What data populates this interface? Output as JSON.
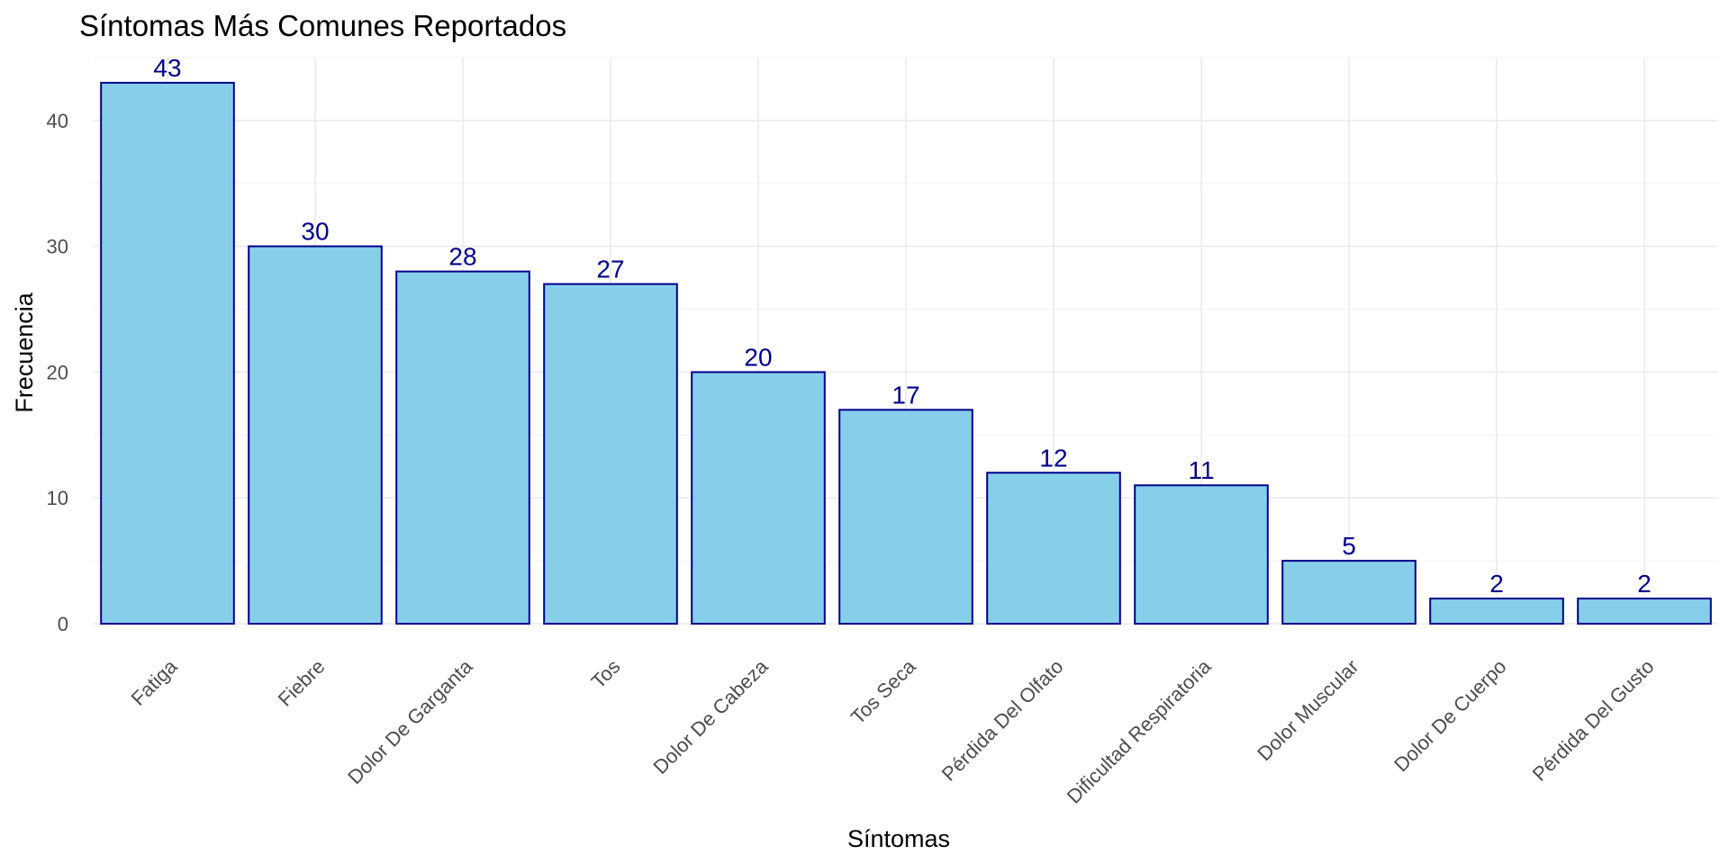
{
  "chart_data": {
    "type": "bar",
    "title": "Síntomas Más Comunes Reportados",
    "xlabel": "Síntomas",
    "ylabel": "Frecuencia",
    "categories": [
      "Fatiga",
      "Fiebre",
      "Dolor De Garganta",
      "Tos",
      "Dolor De Cabeza",
      "Tos Seca",
      "Pérdida Del Olfato",
      "Dificultad Respiratoria",
      "Dolor Muscular",
      "Dolor De Cuerpo",
      "Pérdida Del Gusto"
    ],
    "values": [
      43,
      30,
      28,
      27,
      20,
      17,
      12,
      11,
      5,
      2,
      2
    ],
    "ylim": [
      0,
      45
    ],
    "yticks": [
      0,
      10,
      20,
      30,
      40
    ],
    "grid": true,
    "legend": "none",
    "colors": {
      "bar_fill": "#87CEEB",
      "bar_stroke": "#00008B",
      "value_label": "#00008B"
    }
  }
}
